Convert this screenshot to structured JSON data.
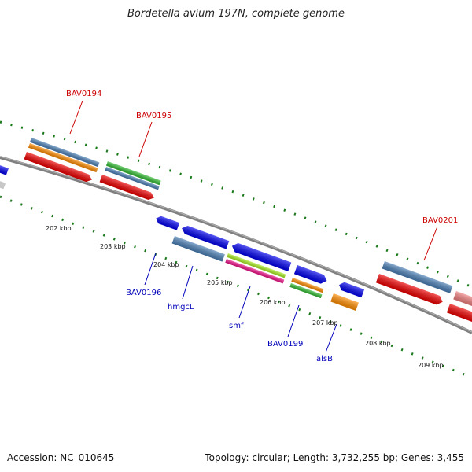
{
  "title": "Bordetella avium 197N, complete genome",
  "footer": {
    "accession": "Accession: NC_010645",
    "summary": "Topology: circular; Length: 3,732,255 bp; Genes: 3,455"
  },
  "colors": {
    "red": "#ee0000",
    "blue": "#0000ee",
    "steel": "#4a7fb5",
    "orange": "#ff8c00",
    "green": "#33bb33",
    "lime": "#aaee22",
    "pink": "#ee1188",
    "gray": "#c8c8c8",
    "backbone": "#808080",
    "ticks": "#1a7a1a",
    "label_red": "#cc0000",
    "label_blue": "#0000bb"
  },
  "scale_labels": [
    "202 kbp",
    "203 kbp",
    "204 kbp",
    "205 kbp",
    "206 kbp",
    "207 kbp",
    "208 kbp",
    "209 kbp"
  ],
  "gene_labels_top": [
    "BAV0194",
    "BAV0195",
    "BAV0201"
  ],
  "gene_labels_bottom": [
    "BAV0196",
    "hmgcL",
    "smf",
    "BAV0199",
    "alsB"
  ]
}
